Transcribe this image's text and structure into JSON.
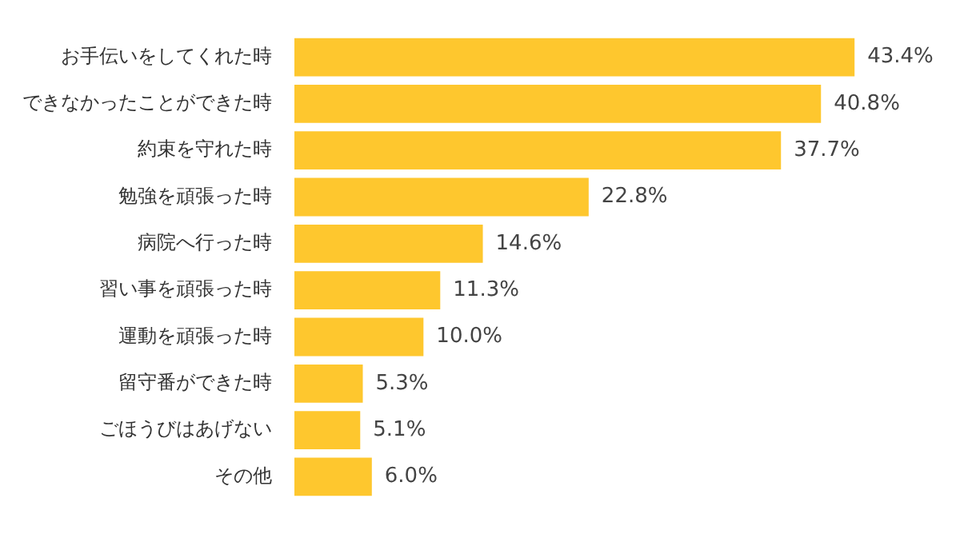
{
  "chart_data": {
    "type": "bar",
    "orientation": "horizontal",
    "categories": [
      "お手伝いをしてくれた時",
      "できなかったことができた時",
      "約束を守れた時",
      "勉強を頑張った時",
      "病院へ行った時",
      "習い事を頑張った時",
      "運動を頑張った時",
      "留守番ができた時",
      "ごほうびはあげない",
      "その他"
    ],
    "values": [
      43.4,
      40.8,
      37.7,
      22.8,
      14.6,
      11.3,
      10.0,
      5.3,
      5.1,
      6.0
    ],
    "value_labels": [
      "43.4%",
      "40.8%",
      "37.7%",
      "22.8%",
      "14.6%",
      "11.3%",
      "10.0%",
      "5.3%",
      "5.1%",
      "6.0%"
    ],
    "color": "#fec72e",
    "legend": false
  }
}
